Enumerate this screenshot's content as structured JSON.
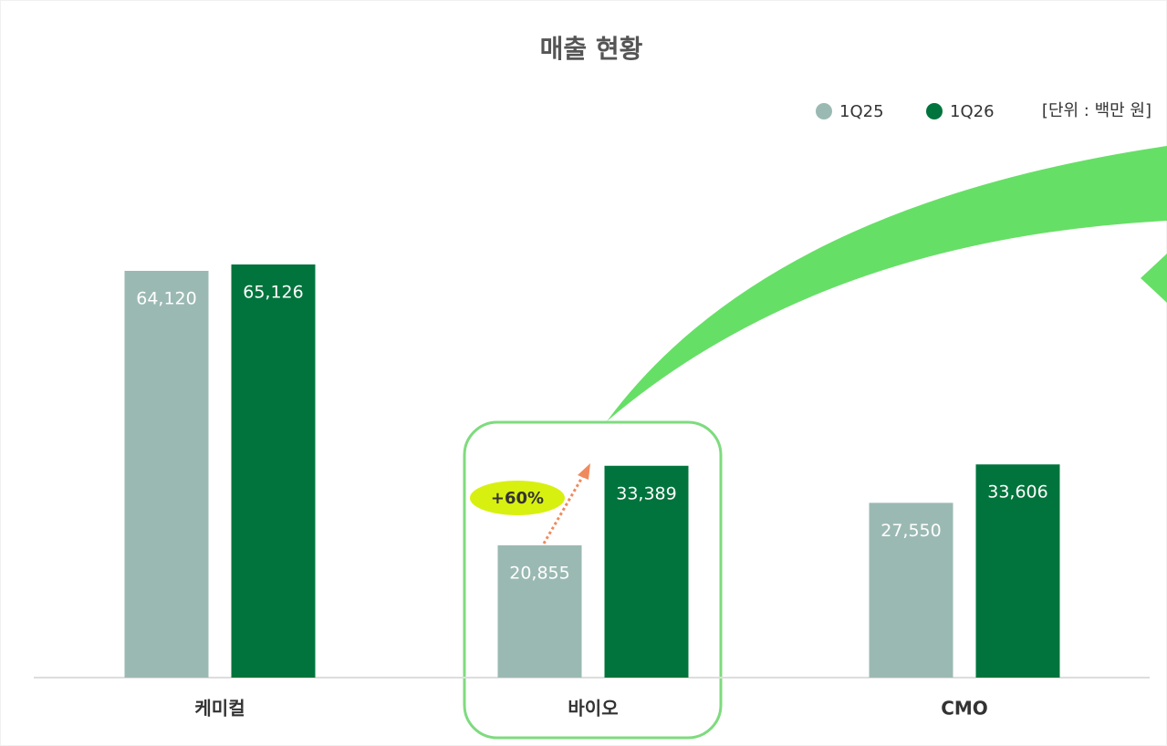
{
  "chart_data": {
    "type": "bar",
    "title": "매출 현황",
    "unit_note": "[단위 : 백만 원]",
    "categories": [
      "케미컬",
      "바이오",
      "CMO"
    ],
    "series": [
      {
        "name": "1Q25",
        "color": "#9bb9b3",
        "values": [
          64120,
          20855,
          27550
        ],
        "value_labels": [
          "64,120",
          "20,855",
          "27,550"
        ]
      },
      {
        "name": "1Q26",
        "color": "#00743c",
        "values": [
          65126,
          33389,
          33606
        ],
        "value_labels": [
          "65,126",
          "33,389",
          "33,606"
        ]
      }
    ],
    "annotation": "+60%"
  }
}
